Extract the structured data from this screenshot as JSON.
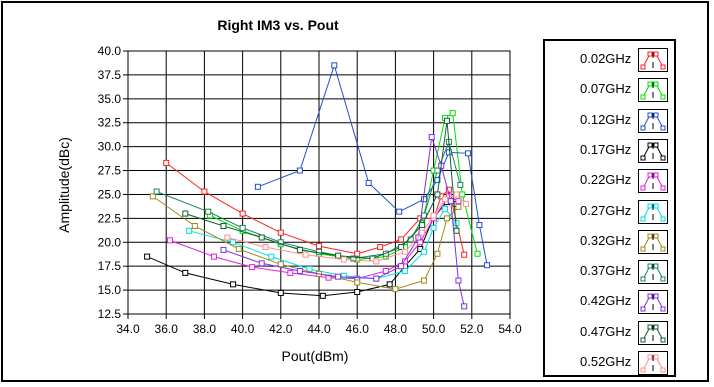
{
  "chart_data": {
    "type": "line",
    "title": "Right IM3 vs. Pout",
    "xlabel": "Pout(dBm)",
    "ylabel": "Amplitude(dBc)",
    "xlim": [
      34.0,
      54.0
    ],
    "ylim": [
      12.5,
      40.0
    ],
    "x_ticks": [
      "34.0",
      "36.0",
      "38.0",
      "40.0",
      "42.0",
      "44.0",
      "46.0",
      "48.0",
      "50.0",
      "52.0",
      "54.0"
    ],
    "y_ticks": [
      "12.5",
      "15.0",
      "17.5",
      "20.0",
      "22.5",
      "25.0",
      "27.5",
      "30.0",
      "32.5",
      "35.0",
      "37.5",
      "40.0"
    ],
    "grid": true,
    "legend": "right",
    "series": [
      {
        "name": "0.02GHz",
        "color": "#ff2020",
        "points": [
          [
            36.0,
            28.3
          ],
          [
            38.0,
            25.3
          ],
          [
            40.0,
            23.0
          ],
          [
            42.0,
            21.0
          ],
          [
            44.0,
            19.6
          ],
          [
            46.0,
            18.8
          ],
          [
            47.2,
            19.5
          ],
          [
            48.3,
            20.3
          ],
          [
            49.3,
            22.5
          ],
          [
            50.0,
            22.5
          ],
          [
            50.4,
            24.8
          ],
          [
            50.8,
            25.5
          ],
          [
            51.6,
            18.7
          ]
        ]
      },
      {
        "name": "0.07GHz",
        "color": "#00e000",
        "points": [
          [
            38.3,
            22.8
          ],
          [
            40.0,
            21.2
          ],
          [
            42.0,
            19.8
          ],
          [
            44.0,
            18.8
          ],
          [
            46.0,
            18.2
          ],
          [
            47.5,
            18.5
          ],
          [
            48.5,
            19.5
          ],
          [
            49.4,
            22.0
          ],
          [
            50.0,
            27.5
          ],
          [
            50.6,
            33.0
          ],
          [
            51.0,
            33.5
          ],
          [
            51.5,
            25.0
          ],
          [
            52.3,
            18.8
          ]
        ]
      },
      {
        "name": "0.12GHz",
        "color": "#2050d0",
        "points": [
          [
            40.8,
            25.8
          ],
          [
            43.0,
            27.5
          ],
          [
            44.8,
            38.5
          ],
          [
            46.6,
            26.2
          ],
          [
            48.2,
            23.2
          ],
          [
            49.5,
            24.5
          ],
          [
            50.2,
            26.5
          ],
          [
            50.8,
            29.4
          ],
          [
            51.8,
            29.3
          ],
          [
            52.4,
            21.8
          ],
          [
            52.8,
            17.6
          ]
        ]
      },
      {
        "name": "0.17GHz",
        "color": "#000000",
        "points": [
          [
            35.0,
            18.5
          ],
          [
            37.0,
            16.8
          ],
          [
            39.5,
            15.6
          ],
          [
            42.0,
            14.7
          ],
          [
            44.2,
            14.4
          ],
          [
            46.0,
            14.8
          ],
          [
            47.7,
            15.6
          ],
          [
            48.5,
            17.5
          ],
          [
            49.3,
            19.3
          ],
          [
            50.0,
            22.6
          ],
          [
            50.7,
            24.2
          ],
          [
            51.2,
            24.0
          ]
        ]
      },
      {
        "name": "0.22GHz",
        "color": "#e020e0",
        "points": [
          [
            36.2,
            20.2
          ],
          [
            38.5,
            18.5
          ],
          [
            40.5,
            17.4
          ],
          [
            42.5,
            16.8
          ],
          [
            44.5,
            16.3
          ],
          [
            46.0,
            16.2
          ],
          [
            47.5,
            17.0
          ],
          [
            48.5,
            18.0
          ],
          [
            49.3,
            20.0
          ],
          [
            50.0,
            22.5
          ],
          [
            50.8,
            24.8
          ],
          [
            51.3,
            24.3
          ]
        ]
      },
      {
        "name": "0.27GHz",
        "color": "#00e0e0",
        "points": [
          [
            37.2,
            21.2
          ],
          [
            39.5,
            20.0
          ],
          [
            41.5,
            18.5
          ],
          [
            43.5,
            17.2
          ],
          [
            45.3,
            16.5
          ],
          [
            47.0,
            16.2
          ],
          [
            48.5,
            17.0
          ],
          [
            49.5,
            19.0
          ],
          [
            50.0,
            21.5
          ],
          [
            50.6,
            23.5
          ],
          [
            51.2,
            22.0
          ]
        ]
      },
      {
        "name": "0.32GHz",
        "color": "#a08a1c",
        "points": [
          [
            35.3,
            24.8
          ],
          [
            37.5,
            21.7
          ],
          [
            39.8,
            19.3
          ],
          [
            42.0,
            17.7
          ],
          [
            44.0,
            16.7
          ],
          [
            46.0,
            15.8
          ],
          [
            48.0,
            15.1
          ],
          [
            49.5,
            16.0
          ],
          [
            50.2,
            18.8
          ],
          [
            50.7,
            22.5
          ],
          [
            51.3,
            23.7
          ]
        ]
      },
      {
        "name": "0.37GHz",
        "color": "#208060",
        "points": [
          [
            35.5,
            25.3
          ],
          [
            38.2,
            23.2
          ],
          [
            40.0,
            21.5
          ],
          [
            42.0,
            20.0
          ],
          [
            44.0,
            19.0
          ],
          [
            45.8,
            18.3
          ],
          [
            47.5,
            18.8
          ],
          [
            48.8,
            20.3
          ],
          [
            49.5,
            22.8
          ],
          [
            50.2,
            27.5
          ],
          [
            50.8,
            30.5
          ],
          [
            51.4,
            26.0
          ]
        ]
      },
      {
        "name": "0.42GHz",
        "color": "#8030e0",
        "points": [
          [
            39.0,
            19.2
          ],
          [
            41.0,
            17.8
          ],
          [
            43.0,
            17.0
          ],
          [
            45.0,
            16.4
          ],
          [
            47.0,
            16.2
          ],
          [
            48.3,
            17.5
          ],
          [
            49.2,
            20.5
          ],
          [
            49.9,
            31.0
          ],
          [
            50.4,
            28.0
          ],
          [
            50.9,
            24.3
          ],
          [
            51.3,
            16.0
          ],
          [
            51.6,
            13.3
          ]
        ]
      },
      {
        "name": "0.47GHz",
        "color": "#106030",
        "points": [
          [
            37.0,
            23.0
          ],
          [
            39.0,
            21.7
          ],
          [
            41.0,
            20.5
          ],
          [
            43.0,
            19.2
          ],
          [
            45.0,
            18.6
          ],
          [
            46.8,
            18.3
          ],
          [
            48.3,
            19.5
          ],
          [
            49.4,
            21.8
          ],
          [
            50.2,
            25.0
          ],
          [
            50.7,
            32.7
          ],
          [
            51.2,
            21.2
          ]
        ]
      },
      {
        "name": "0.52GHz",
        "color": "#ff9090",
        "points": [
          [
            39.2,
            20.5
          ],
          [
            41.2,
            19.5
          ],
          [
            43.3,
            18.7
          ],
          [
            45.3,
            18.2
          ],
          [
            47.0,
            18.0
          ],
          [
            48.5,
            19.0
          ],
          [
            49.4,
            21.0
          ],
          [
            50.0,
            22.8
          ],
          [
            50.6,
            24.5
          ],
          [
            51.2,
            25.0
          ],
          [
            51.7,
            24.0
          ]
        ]
      }
    ]
  }
}
